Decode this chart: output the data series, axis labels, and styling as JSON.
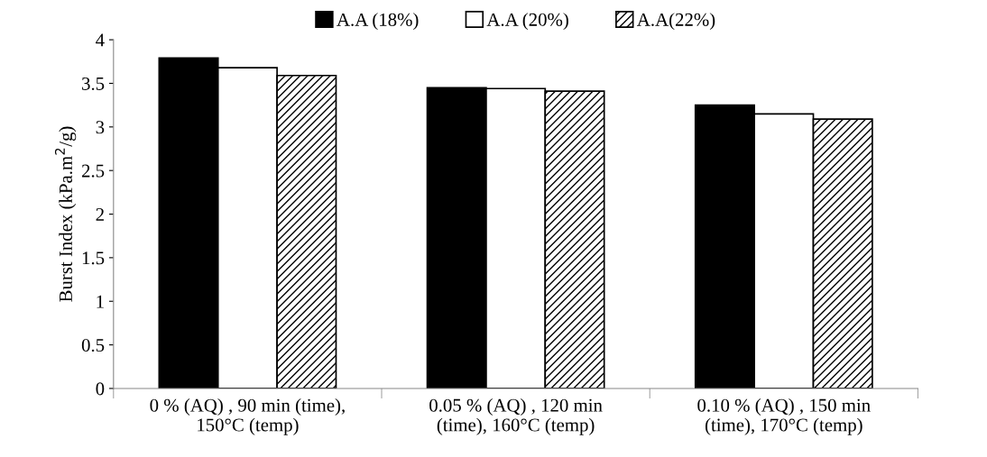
{
  "chart_data": {
    "type": "bar",
    "ylabel": "Burst Index (kPa.m$^{2}$/g)",
    "categories": [
      "0 % (AQ) , 90 min (time),\n150°C (temp)",
      "0.05 % (AQ) , 120 min\n(time), 160°C (temp)",
      "0.10 % (AQ) , 150 min\n(time), 170°C (temp)"
    ],
    "series": [
      {
        "name": "A.A (18%)",
        "color": "#000000",
        "values": [
          3.79,
          3.45,
          3.25
        ]
      },
      {
        "name": "A.A (20%)",
        "color": "#ffffff",
        "values": [
          3.68,
          3.44,
          3.15
        ]
      },
      {
        "name": "A.A(22%)",
        "color": "#000000",
        "values": [
          3.59,
          3.41,
          3.09
        ]
      }
    ],
    "ylim": [
      0,
      4
    ],
    "yticks": [
      0,
      {
        "value": 0.5,
        "label": "0.5"
      },
      1,
      {
        "value": 1.5,
        "label": "1.5"
      },
      2,
      {
        "value": 2.5,
        "label": "2.5"
      },
      3,
      {
        "value": 3.5,
        "label": "3.5"
      },
      4
    ],
    "grid": false,
    "legend": "top"
  }
}
